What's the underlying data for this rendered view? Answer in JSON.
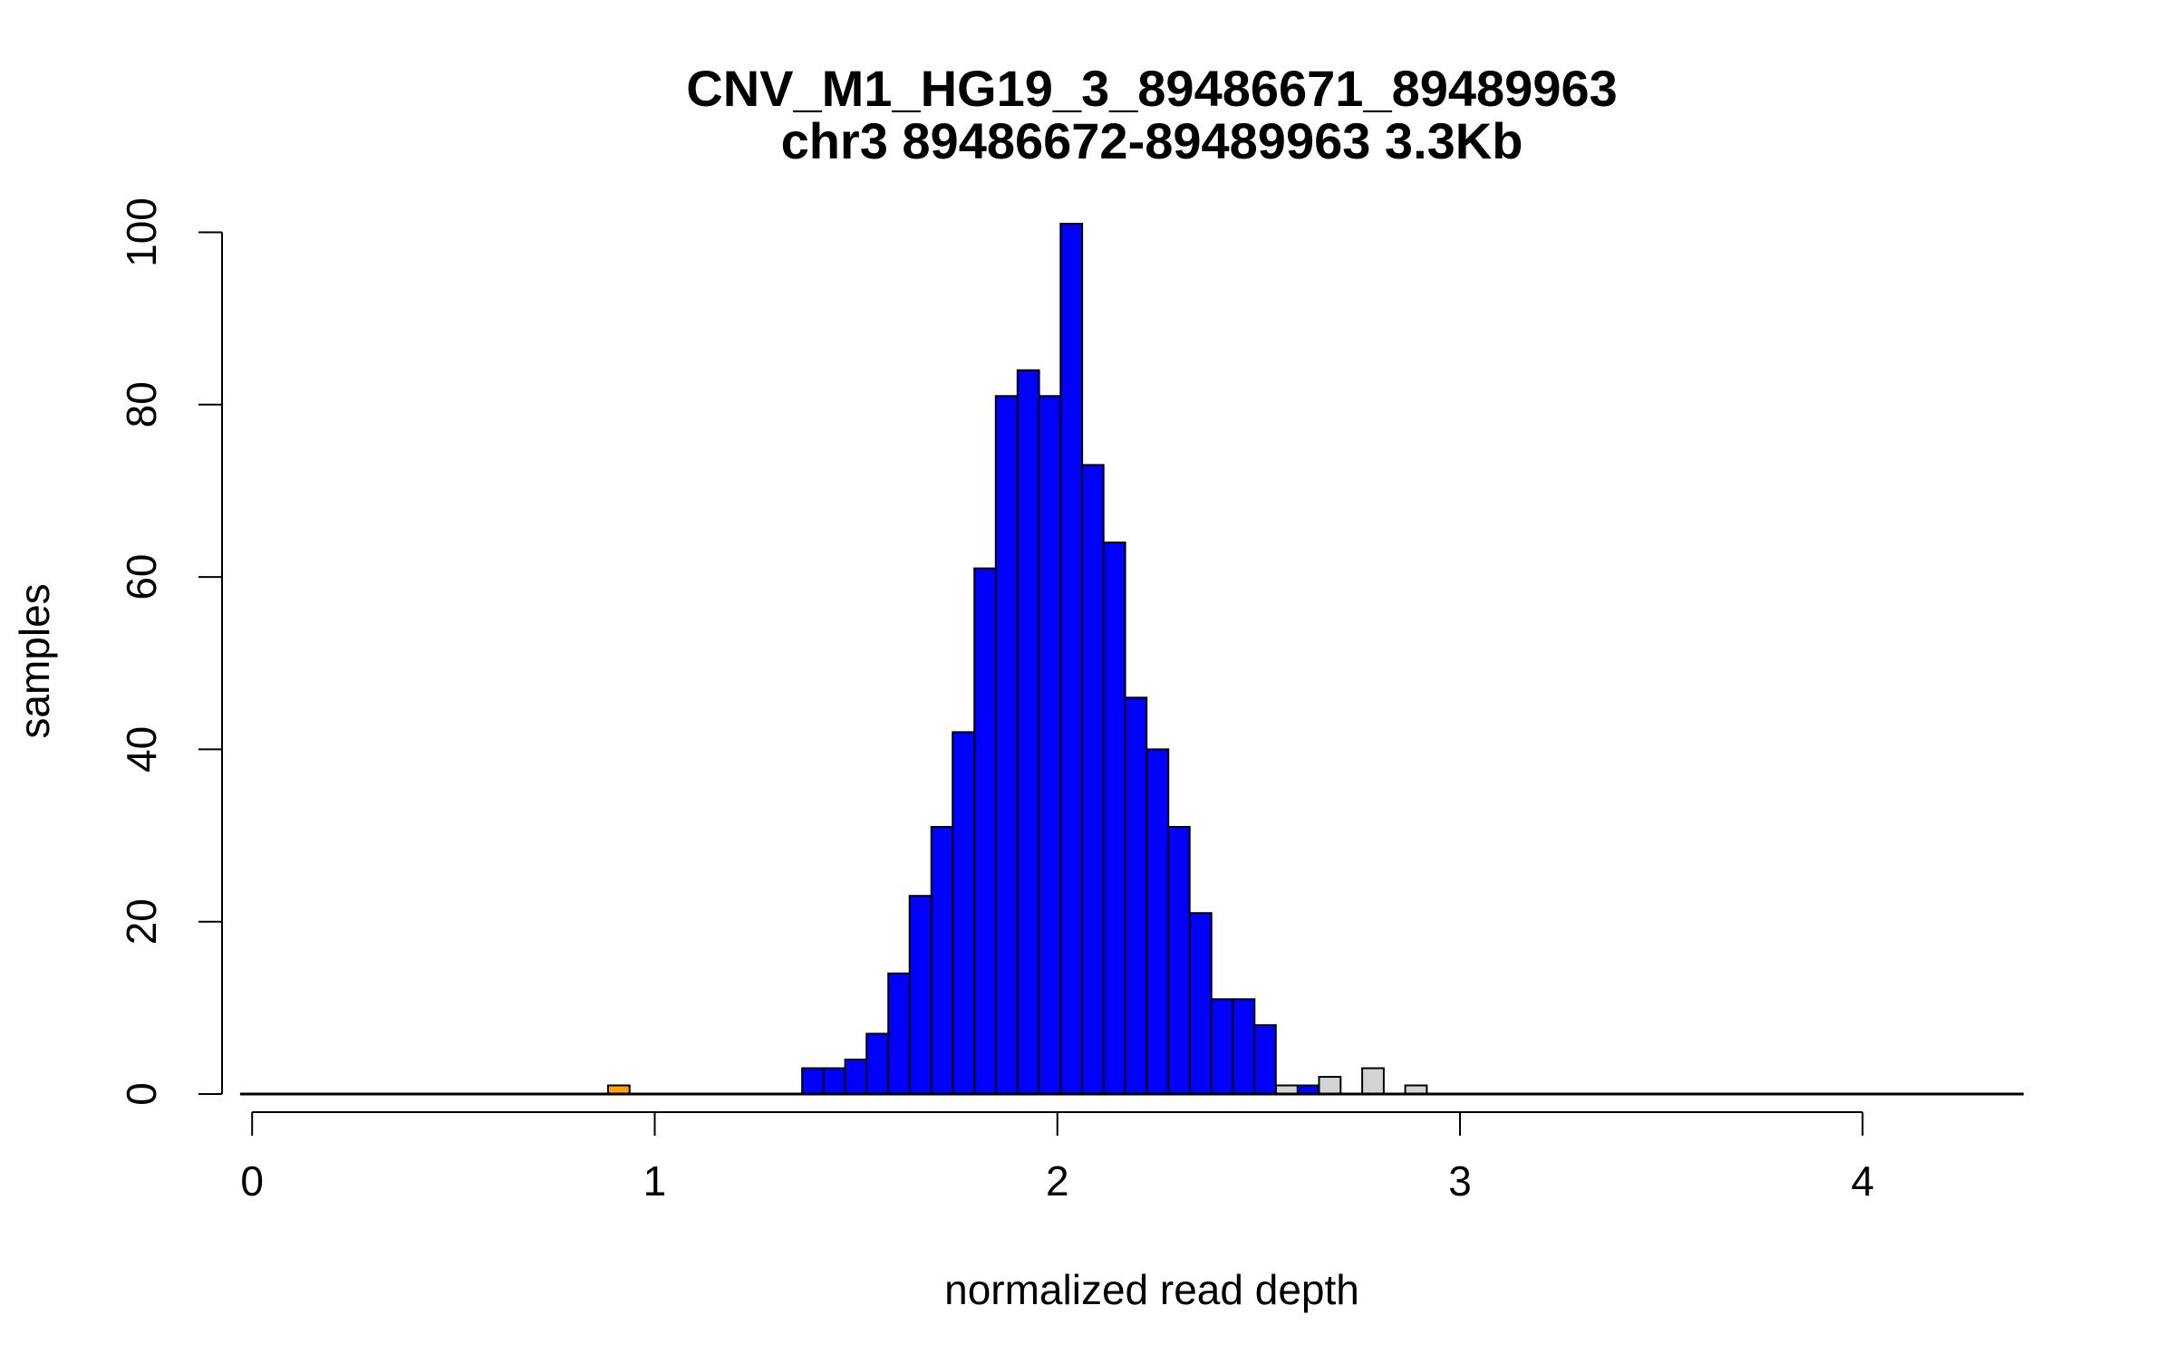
{
  "chart_data": {
    "type": "bar",
    "title": "CNV_M1_HG19_3_89486671_89489963",
    "subtitle": "chr3 89486672-89489963 3.3Kb",
    "xlabel": "normalized read depth",
    "ylabel": "samples",
    "xlim": [
      -0.05,
      4.4
    ],
    "ylim": [
      0,
      101
    ],
    "x_ticks": [
      0,
      1,
      2,
      3,
      4
    ],
    "y_ticks": [
      0,
      20,
      40,
      60,
      80,
      100
    ],
    "bin_width": 0.0535,
    "baseline": {
      "from": -0.03,
      "to": 4.4
    },
    "grid": false,
    "legend": "none",
    "colors": {
      "deletion": "#ffa500",
      "normal": "#0000ff",
      "duplication": "#d3d3d3",
      "border": "#000000"
    },
    "series": [
      {
        "category": "deletion",
        "bins": [
          [
            0.884,
            1
          ]
        ]
      },
      {
        "category": "normal",
        "bins": [
          [
            1.366,
            3
          ],
          [
            1.419,
            3
          ],
          [
            1.473,
            4
          ],
          [
            1.526,
            7
          ],
          [
            1.58,
            14
          ],
          [
            1.633,
            23
          ],
          [
            1.687,
            31
          ],
          [
            1.74,
            42
          ],
          [
            1.794,
            61
          ],
          [
            1.847,
            81
          ],
          [
            1.901,
            84
          ],
          [
            1.954,
            81
          ],
          [
            2.008,
            101
          ],
          [
            2.061,
            73
          ],
          [
            2.115,
            64
          ],
          [
            2.168,
            46
          ],
          [
            2.222,
            40
          ],
          [
            2.275,
            31
          ],
          [
            2.329,
            21
          ],
          [
            2.382,
            11
          ],
          [
            2.436,
            11
          ],
          [
            2.489,
            8
          ],
          [
            2.596,
            1
          ]
        ]
      },
      {
        "category": "duplication",
        "bins": [
          [
            2.543,
            1
          ],
          [
            2.65,
            2
          ],
          [
            2.757,
            3
          ],
          [
            2.864,
            1
          ]
        ]
      }
    ]
  }
}
